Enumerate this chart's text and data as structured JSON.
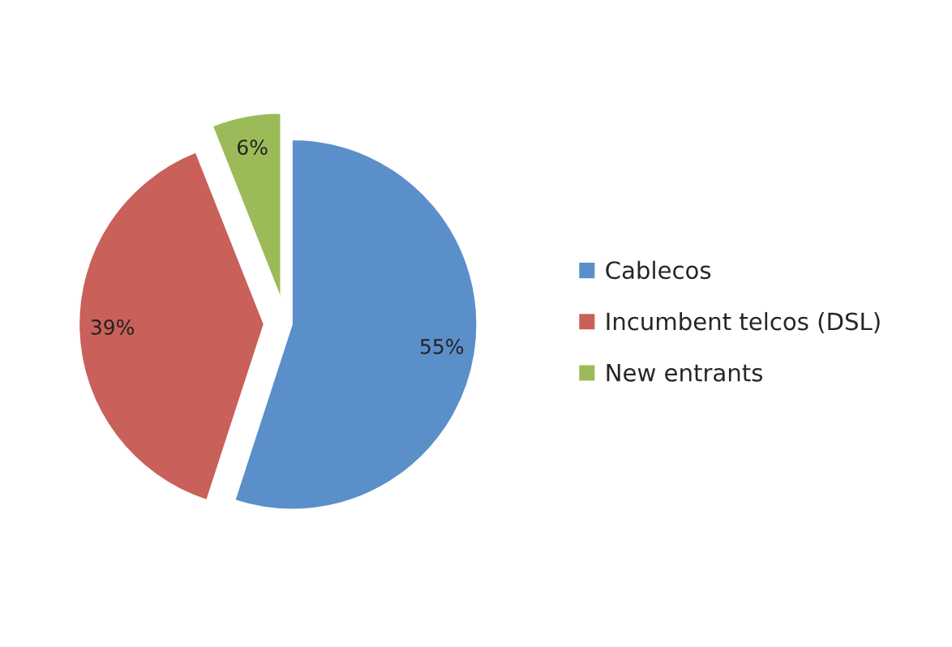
{
  "chart_data": {
    "type": "pie",
    "categories": [
      "Cablecos",
      "Incumbent telcos (DSL)",
      "New entrants"
    ],
    "values": [
      55,
      39,
      6
    ],
    "colors": [
      "#5b8fc9",
      "#c9605a",
      "#9bbb59"
    ],
    "value_labels": [
      "55%",
      "39%",
      "6%"
    ],
    "legend": "right"
  }
}
